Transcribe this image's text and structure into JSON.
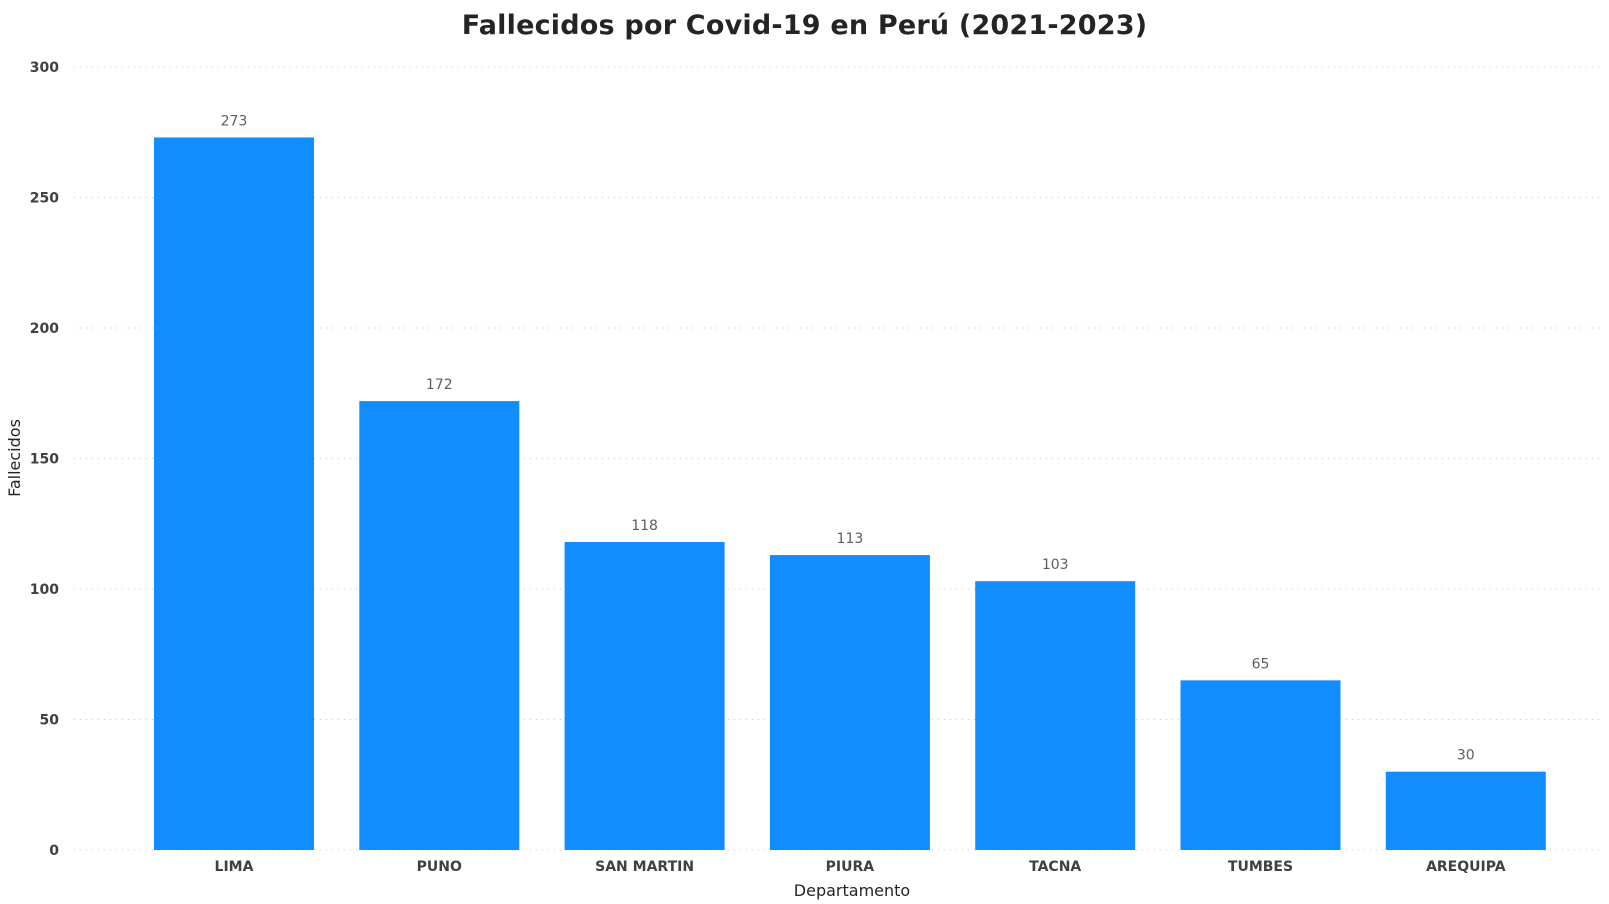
{
  "chart_data": {
    "type": "bar",
    "title": "Fallecidos por Covid-19 en Perú (2021-2023)",
    "xlabel": "Departamento",
    "ylabel": "Fallecidos",
    "categories": [
      "LIMA",
      "PUNO",
      "SAN MARTIN",
      "PIURA",
      "TACNA",
      "TUMBES",
      "AREQUIPA"
    ],
    "values": [
      273,
      172,
      118,
      113,
      103,
      65,
      30
    ],
    "data_labels": [
      "273",
      "172",
      "118",
      "113",
      "103",
      "65",
      "30"
    ],
    "ylim": [
      0,
      300
    ],
    "yticks": [
      0,
      50,
      100,
      150,
      200,
      250,
      300
    ],
    "grid": true,
    "bar_color": "#118DFF"
  }
}
